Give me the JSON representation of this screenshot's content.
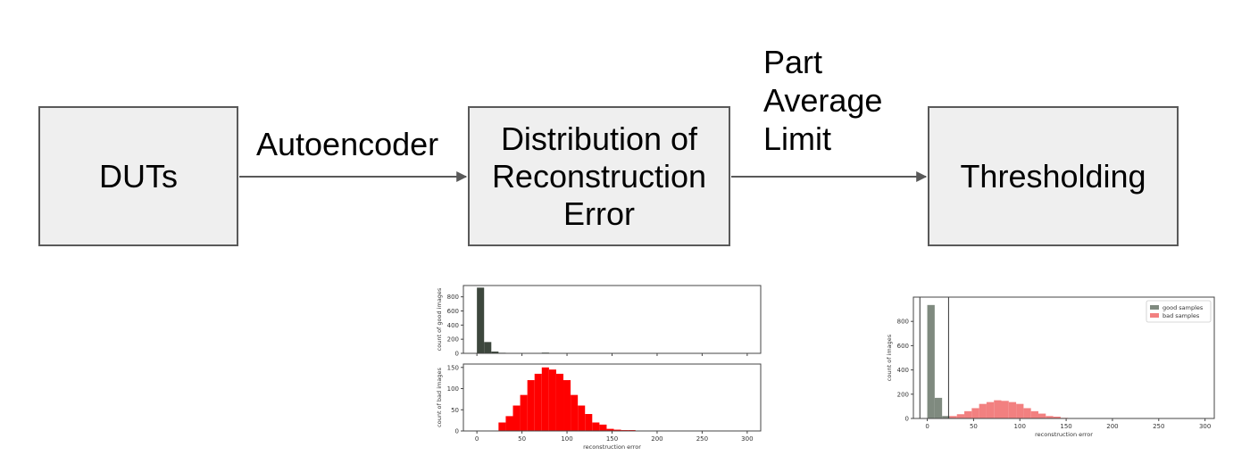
{
  "colors": {
    "box_fill": "#efefef",
    "box_border": "#595959",
    "arrow": "#595959",
    "good_dark": "#3d473d",
    "bad_red": "#ff0000",
    "good_gray": "#7f8a7f",
    "bad_pink": "#f28080"
  },
  "diagram": {
    "boxes": [
      {
        "id": "duts",
        "label": "DUTs"
      },
      {
        "id": "distribution",
        "label": "Distribution of\nReconstruction\nError"
      },
      {
        "id": "thresholding",
        "label": "Thresholding"
      }
    ],
    "edges": [
      {
        "from": "duts",
        "to": "distribution",
        "label": "Autoencoder"
      },
      {
        "from": "distribution",
        "to": "thresholding",
        "label": "Part\nAverage\nLimit"
      }
    ]
  },
  "chart_data": [
    {
      "type": "bar",
      "panel": "top",
      "ylabel": "count of good images",
      "yticks": [
        0,
        200,
        400,
        600,
        800
      ],
      "ylim": [
        0,
        960
      ],
      "xlim": [
        -15,
        315
      ],
      "xticks": [
        0,
        50,
        100,
        150,
        200,
        250,
        300
      ],
      "show_xticklabels": false,
      "bin_width": 8,
      "color": "#3d473d",
      "bins": [
        [
          0,
          930
        ],
        [
          8,
          160
        ],
        [
          16,
          25
        ],
        [
          24,
          8
        ],
        [
          32,
          4
        ],
        [
          40,
          3
        ],
        [
          48,
          2
        ],
        [
          56,
          2
        ],
        [
          64,
          1
        ],
        [
          72,
          10
        ],
        [
          80,
          2
        ]
      ]
    },
    {
      "type": "bar",
      "panel": "bottom",
      "ylabel": "count of bad images",
      "xlabel": "reconstruction error",
      "yticks": [
        0,
        50,
        100,
        150
      ],
      "ylim": [
        0,
        158
      ],
      "xlim": [
        -15,
        315
      ],
      "xticks": [
        0,
        50,
        100,
        150,
        200,
        250,
        300
      ],
      "bin_width": 8,
      "color": "#ff0000",
      "bins": [
        [
          24,
          20
        ],
        [
          32,
          35
        ],
        [
          40,
          60
        ],
        [
          48,
          85
        ],
        [
          56,
          120
        ],
        [
          64,
          135
        ],
        [
          72,
          150
        ],
        [
          80,
          145
        ],
        [
          88,
          135
        ],
        [
          96,
          120
        ],
        [
          104,
          85
        ],
        [
          112,
          60
        ],
        [
          120,
          40
        ],
        [
          128,
          20
        ],
        [
          136,
          15
        ],
        [
          144,
          5
        ],
        [
          152,
          3
        ],
        [
          160,
          2
        ],
        [
          168,
          2
        ],
        [
          176,
          1
        ],
        [
          192,
          1
        ]
      ]
    },
    {
      "type": "bar",
      "panel": "combined",
      "ylabel": "count of images",
      "xlabel": "reconstruction error",
      "yticks": [
        0,
        200,
        400,
        600,
        800
      ],
      "ylim": [
        0,
        1000
      ],
      "xlim": [
        -15,
        310
      ],
      "xticks": [
        0,
        50,
        100,
        150,
        200,
        250,
        300
      ],
      "legend": {
        "position": "top-right",
        "entries": [
          "good samples",
          "bad samples"
        ]
      },
      "threshold_lines": [
        -8,
        23
      ],
      "series": [
        {
          "name": "good samples",
          "color": "#7f8a7f",
          "bin_width": 8,
          "bins": [
            [
              0,
              935
            ],
            [
              8,
              170
            ],
            [
              16,
              20
            ],
            [
              24,
              6
            ],
            [
              32,
              2
            ]
          ]
        },
        {
          "name": "bad samples",
          "color": "#f28080",
          "bin_width": 8,
          "bins": [
            [
              24,
              20
            ],
            [
              32,
              35
            ],
            [
              40,
              60
            ],
            [
              48,
              85
            ],
            [
              56,
              120
            ],
            [
              64,
              135
            ],
            [
              72,
              150
            ],
            [
              80,
              145
            ],
            [
              88,
              135
            ],
            [
              96,
              120
            ],
            [
              104,
              85
            ],
            [
              112,
              60
            ],
            [
              120,
              40
            ],
            [
              128,
              20
            ],
            [
              136,
              15
            ],
            [
              144,
              5
            ],
            [
              152,
              3
            ],
            [
              160,
              2
            ],
            [
              168,
              2
            ],
            [
              176,
              1
            ],
            [
              192,
              1
            ]
          ]
        }
      ]
    }
  ]
}
